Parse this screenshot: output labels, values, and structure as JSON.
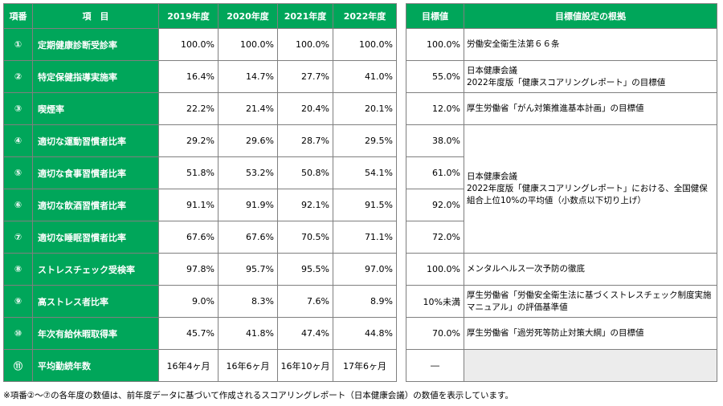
{
  "left_headers": [
    "項番",
    "項　目",
    "2019年度",
    "2020年度",
    "2021年度",
    "2022年度"
  ],
  "right_headers": [
    "目標値",
    "目標値設定の根拠"
  ],
  "rows": [
    {
      "no": "①",
      "item": "定期健康診断受診率",
      "y2019": "100.0%",
      "y2020": "100.0%",
      "y2021": "100.0%",
      "y2022": "100.0%",
      "target": "100.0%"
    },
    {
      "no": "②",
      "item": "特定保健指導実施率",
      "y2019": "16.4%",
      "y2020": "14.7%",
      "y2021": "27.7%",
      "y2022": "41.0%",
      "target": "55.0%"
    },
    {
      "no": "③",
      "item": "喫煙率",
      "y2019": "22.2%",
      "y2020": "21.4%",
      "y2021": "20.4%",
      "y2022": "20.1%",
      "target": "12.0%"
    },
    {
      "no": "④",
      "item": "適切な運動習慣者比率",
      "y2019": "29.2%",
      "y2020": "29.6%",
      "y2021": "28.7%",
      "y2022": "29.5%",
      "target": "38.0%"
    },
    {
      "no": "⑤",
      "item": "適切な食事習慣者比率",
      "y2019": "51.8%",
      "y2020": "53.2%",
      "y2021": "50.8%",
      "y2022": "54.1%",
      "target": "61.0%"
    },
    {
      "no": "⑥",
      "item": "適切な飲酒習慣者比率",
      "y2019": "91.1%",
      "y2020": "91.9%",
      "y2021": "92.1%",
      "y2022": "91.5%",
      "target": "92.0%"
    },
    {
      "no": "⑦",
      "item": "適切な睡眠習慣者比率",
      "y2019": "67.6%",
      "y2020": "67.6%",
      "y2021": "70.5%",
      "y2022": "71.1%",
      "target": "72.0%"
    },
    {
      "no": "⑧",
      "item": "ストレスチェック受検率",
      "y2019": "97.8%",
      "y2020": "95.7%",
      "y2021": "95.5%",
      "y2022": "97.0%",
      "target": "100.0%"
    },
    {
      "no": "⑨",
      "item": "高ストレス者比率",
      "y2019": "9.0%",
      "y2020": "8.3%",
      "y2021": "7.6%",
      "y2022": "8.9%",
      "target": "10%未満"
    },
    {
      "no": "⑩",
      "item": "年次有給休暇取得率",
      "y2019": "45.7%",
      "y2020": "41.8%",
      "y2021": "47.4%",
      "y2022": "44.8%",
      "target": "70.0%"
    },
    {
      "no": "⑪",
      "item": "平均勤続年数",
      "y2019": "16年4ヶ月",
      "y2020": "16年6ヶ月",
      "y2021": "16年10ヶ月",
      "y2022": "17年6ヶ月",
      "target": "―"
    }
  ],
  "basis": {
    "b1": "労働安全衛生法第６６条",
    "b2_line1": "日本健康会議",
    "b2_line2": "2022年度版「健康スコアリングレポート」の目標値",
    "b3": "厚生労働省「がん対策推進基本計画」の目標値",
    "b4_line1": "日本健康会議",
    "b4_line2": "2022年度版「健康スコアリングレポート」における、全国健保組合上位10%の平均値（小数点以下切り上げ）",
    "b8": "メンタルヘルス一次予防の徹底",
    "b9": "厚生労働省「労働安全衛生法に基づくストレスチェック制度実施マニュアル」の評価基準値",
    "b10": "厚生労働省「過労死等防止対策大綱」の目標値"
  },
  "note": "※項番②～⑦の各年度の数値は、前年度データに基づいて作成されるスコアリングレポート（日本健康会議）の数値を表示しています。",
  "colors": {
    "header_green": "#00a65a",
    "empty_gray": "#ececec"
  }
}
